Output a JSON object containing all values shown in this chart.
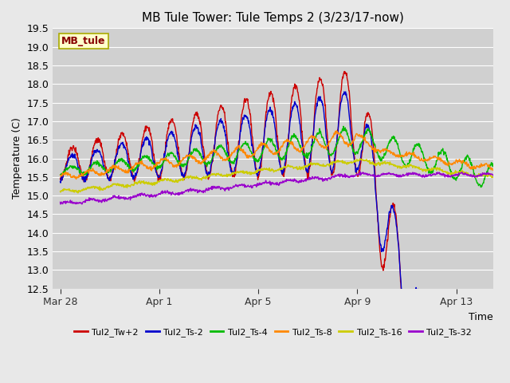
{
  "title": "MB Tule Tower: Tule Temps 2 (3/23/17-now)",
  "xlabel": "Time",
  "ylabel": "Temperature (C)",
  "ylim": [
    12.5,
    19.5
  ],
  "figsize": [
    6.4,
    4.8
  ],
  "dpi": 100,
  "bg_color": "#e8e8e8",
  "plot_bg_color": "#d0d0d0",
  "grid_color": "#ffffff",
  "series": [
    {
      "label": "Tul2_Tw+2",
      "color": "#cc0000"
    },
    {
      "label": "Tul2_Ts-2",
      "color": "#0000cc"
    },
    {
      "label": "Tul2_Ts-4",
      "color": "#00bb00"
    },
    {
      "label": "Tul2_Ts-8",
      "color": "#ff8800"
    },
    {
      "label": "Tul2_Ts-16",
      "color": "#cccc00"
    },
    {
      "label": "Tul2_Ts-32",
      "color": "#9900cc"
    }
  ],
  "xtick_positions": [
    0,
    4,
    8,
    12,
    16
  ],
  "xtick_labels": [
    "Mar 28",
    "Apr 1",
    "Apr 5",
    "Apr 9",
    "Apr 13"
  ],
  "ytick_values": [
    12.5,
    13.0,
    13.5,
    14.0,
    14.5,
    15.0,
    15.5,
    16.0,
    16.5,
    17.0,
    17.5,
    18.0,
    18.5,
    19.0,
    19.5
  ],
  "xlim": [
    -0.3,
    17.5
  ],
  "watermark": "MB_tule",
  "watermark_bg": "#ffffcc",
  "watermark_edge": "#aaaa00",
  "watermark_color": "#880000",
  "title_fontsize": 11,
  "label_fontsize": 9,
  "tick_fontsize": 9,
  "legend_fontsize": 8
}
